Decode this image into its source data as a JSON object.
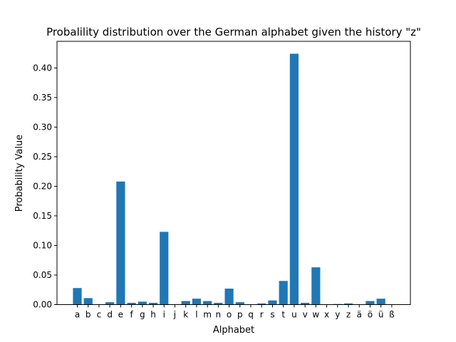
{
  "chart_data": {
    "type": "bar",
    "title": "Probalility distribution over the German alphabet given the history \"z\"",
    "xlabel": "Alphabet",
    "ylabel": "Probability Value",
    "ylim": [
      0,
      0.445
    ],
    "yticks": [
      "0.00",
      "0.05",
      "0.10",
      "0.15",
      "0.20",
      "0.25",
      "0.30",
      "0.35",
      "0.40"
    ],
    "grid": false,
    "bar_color": "#1f77b4",
    "categories": [
      "a",
      "b",
      "c",
      "d",
      "e",
      "f",
      "g",
      "h",
      "i",
      "j",
      "k",
      "l",
      "m",
      "n",
      "o",
      "p",
      "q",
      "r",
      "s",
      "t",
      "u",
      "v",
      "w",
      "x",
      "y",
      "z",
      "ä",
      "ö",
      "ü",
      "ß"
    ],
    "values": [
      0.028,
      0.011,
      0.0,
      0.004,
      0.208,
      0.003,
      0.005,
      0.003,
      0.123,
      0.0,
      0.006,
      0.01,
      0.006,
      0.003,
      0.027,
      0.004,
      0.0,
      0.002,
      0.007,
      0.04,
      0.424,
      0.003,
      0.063,
      0.0,
      0.001,
      0.002,
      0.0,
      0.006,
      0.01,
      0.0
    ]
  }
}
